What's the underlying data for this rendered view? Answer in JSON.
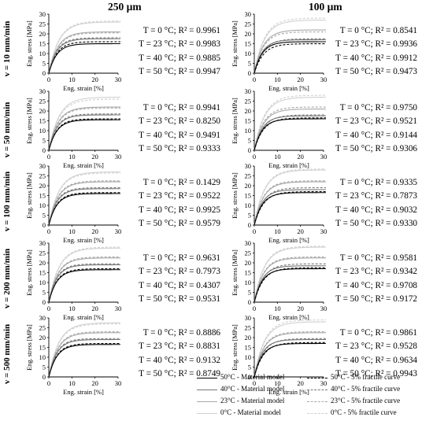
{
  "figure": {
    "column_headers": [
      "250 µm",
      "100 µm"
    ],
    "row_headers": [
      "v = 10 mm/min",
      "v = 50 mm/min",
      "v = 100 mm/min",
      "v = 200 mm/min",
      "v = 500 mm/min"
    ]
  },
  "legend": {
    "items": [
      {
        "label": "50°C - Material model",
        "color": "#000000",
        "style": "solid"
      },
      {
        "label": "40°C - Material model",
        "color": "#777777",
        "style": "solid"
      },
      {
        "label": "23°C - Material model",
        "color": "#a8a8a8",
        "style": "solid"
      },
      {
        "label": "0°C - Material model",
        "color": "#d0d0d0",
        "style": "solid"
      },
      {
        "label": "50°C - 5% fractile curve",
        "color": "#000000",
        "style": "dashed"
      },
      {
        "label": "40°C - 5% fractile curve",
        "color": "#777777",
        "style": "dashed"
      },
      {
        "label": "23°C - 5% fractile curve",
        "color": "#a8a8a8",
        "style": "dashed"
      },
      {
        "label": "0°C - 5% fractile curve",
        "color": "#d0d0d0",
        "style": "dashed"
      }
    ]
  },
  "chart_data": [
    {
      "type": "line",
      "panel": "v = 10 mm/min, 250 µm",
      "xlabel": "Eng. strain [%]",
      "ylabel": "Eng. stress [MPa]",
      "xlim": [
        0,
        30
      ],
      "ylim": [
        0,
        30
      ],
      "xticks": [
        "0",
        "10",
        "20",
        "30"
      ],
      "yticks": [
        "0",
        "5",
        "10",
        "15",
        "20",
        "25",
        "30"
      ],
      "series": [
        {
          "name": "50°C - Material model",
          "plateau": 15,
          "knee": 8
        },
        {
          "name": "40°C - Material model",
          "plateau": 17.5,
          "knee": 8
        },
        {
          "name": "23°C - Material model",
          "plateau": 21,
          "knee": 9
        },
        {
          "name": "0°C - Material model",
          "plateau": 26,
          "knee": 10
        },
        {
          "name": "50°C - 5% fractile curve",
          "plateau": 16,
          "knee": 8
        },
        {
          "name": "40°C - 5% fractile curve",
          "plateau": 18,
          "knee": 8
        },
        {
          "name": "23°C - 5% fractile curve",
          "plateau": 20.5,
          "knee": 9
        },
        {
          "name": "0°C - 5% fractile curve",
          "plateau": 26.5,
          "knee": 10
        }
      ],
      "r2": {
        "T = 0 °C": "0.9961",
        "T = 23 °C": "0.9983",
        "T = 40 °C": "0.9885",
        "T = 50 °C": "0.9947"
      }
    },
    {
      "type": "line",
      "panel": "v = 10 mm/min, 100 µm",
      "xlabel": "Eng. strain [%]",
      "ylabel": "Eng. stress [MPa]",
      "xlim": [
        0,
        30
      ],
      "ylim": [
        0,
        30
      ],
      "xticks": [
        "0",
        "10",
        "20",
        "30"
      ],
      "yticks": [
        "0",
        "5",
        "10",
        "15",
        "20",
        "25",
        "30"
      ],
      "series": [
        {
          "name": "50°C - Material model",
          "plateau": 16,
          "knee": 8
        },
        {
          "name": "40°C - Material model",
          "plateau": 17,
          "knee": 8
        },
        {
          "name": "23°C - Material model",
          "plateau": 22,
          "knee": 9
        },
        {
          "name": "0°C - Material model",
          "plateau": 27,
          "knee": 10
        },
        {
          "name": "50°C - 5% fractile curve",
          "plateau": 15,
          "knee": 9
        },
        {
          "name": "40°C - 5% fractile curve",
          "plateau": 17.5,
          "knee": 9
        },
        {
          "name": "23°C - 5% fractile curve",
          "plateau": 21,
          "knee": 9
        },
        {
          "name": "0°C - 5% fractile curve",
          "plateau": 28,
          "knee": 10
        }
      ],
      "r2": {
        "T = 0 °C": "0.8541",
        "T = 23 °C": "0.9936",
        "T = 40 °C": "0.9912",
        "T = 50 °C": "0.9473"
      }
    },
    {
      "type": "line",
      "panel": "v = 50 mm/min, 250 µm",
      "xlabel": "Eng. strain [%]",
      "ylabel": "Eng. stress [MPa]",
      "xlim": [
        0,
        30
      ],
      "ylim": [
        0,
        30
      ],
      "xticks": [
        "0",
        "10",
        "20",
        "30"
      ],
      "yticks": [
        "0",
        "5",
        "10",
        "15",
        "20",
        "25",
        "30"
      ],
      "series": [
        {
          "name": "50°C - Material model",
          "plateau": 15.5,
          "knee": 8
        },
        {
          "name": "40°C - Material model",
          "plateau": 18,
          "knee": 8
        },
        {
          "name": "23°C - Material model",
          "plateau": 22,
          "knee": 9
        },
        {
          "name": "0°C - Material model",
          "plateau": 27,
          "knee": 10
        },
        {
          "name": "50°C - 5% fractile curve",
          "plateau": 16,
          "knee": 8
        },
        {
          "name": "40°C - 5% fractile curve",
          "plateau": 18.5,
          "knee": 8
        },
        {
          "name": "23°C - 5% fractile curve",
          "plateau": 21.5,
          "knee": 9
        },
        {
          "name": "0°C - 5% fractile curve",
          "plateau": 26,
          "knee": 10
        }
      ],
      "r2": {
        "T = 0 °C": "0.9941",
        "T = 23 °C": "0.8250",
        "T = 40 °C": "0.9491",
        "T = 50 °C": "0.9333"
      }
    },
    {
      "type": "line",
      "panel": "v = 50 mm/min, 100 µm",
      "xlabel": "Eng. strain [%]",
      "ylabel": "Eng. stress [MPa]",
      "xlim": [
        0,
        30
      ],
      "ylim": [
        0,
        30
      ],
      "xticks": [
        "0",
        "10",
        "20",
        "30"
      ],
      "yticks": [
        "0",
        "5",
        "10",
        "15",
        "20",
        "25",
        "30"
      ],
      "series": [
        {
          "name": "50°C - Material model",
          "plateau": 16,
          "knee": 8
        },
        {
          "name": "40°C - Material model",
          "plateau": 17.5,
          "knee": 8
        },
        {
          "name": "23°C - Material model",
          "plateau": 21,
          "knee": 9
        },
        {
          "name": "0°C - Material model",
          "plateau": 27,
          "knee": 10
        },
        {
          "name": "50°C - 5% fractile curve",
          "plateau": 16.5,
          "knee": 9
        },
        {
          "name": "40°C - 5% fractile curve",
          "plateau": 18,
          "knee": 9
        },
        {
          "name": "23°C - 5% fractile curve",
          "plateau": 22,
          "knee": 9
        },
        {
          "name": "0°C - 5% fractile curve",
          "plateau": 28,
          "knee": 10
        }
      ],
      "r2": {
        "T = 0 °C": "0.9750",
        "T = 23 °C": "0.9521",
        "T = 40 °C": "0.9144",
        "T = 50 °C": "0.9306"
      }
    },
    {
      "type": "line",
      "panel": "v = 100 mm/min, 250 µm",
      "xlabel": "Eng. strain [%]",
      "ylabel": "Eng. stress [MPa]",
      "xlim": [
        0,
        30
      ],
      "ylim": [
        0,
        30
      ],
      "xticks": [
        "0",
        "10",
        "20",
        "30"
      ],
      "yticks": [
        "0",
        "5",
        "10",
        "15",
        "20",
        "25",
        "30"
      ],
      "series": [
        {
          "name": "50°C - Material model",
          "plateau": 16,
          "knee": 8
        },
        {
          "name": "40°C - Material model",
          "plateau": 18.5,
          "knee": 8
        },
        {
          "name": "23°C - Material model",
          "plateau": 22,
          "knee": 9
        },
        {
          "name": "0°C - Material model",
          "plateau": 27,
          "knee": 10
        },
        {
          "name": "50°C - 5% fractile curve",
          "plateau": 16.5,
          "knee": 8
        },
        {
          "name": "40°C - 5% fractile curve",
          "plateau": 19,
          "knee": 8
        },
        {
          "name": "23°C - 5% fractile curve",
          "plateau": 22.5,
          "knee": 9
        },
        {
          "name": "0°C - 5% fractile curve",
          "plateau": 26.5,
          "knee": 10
        }
      ],
      "r2": {
        "T = 0 °C": "0.1429",
        "T = 23 °C": "0.9522",
        "T = 40 °C": "0.9925",
        "T = 50 °C": "0.9579"
      }
    },
    {
      "type": "line",
      "panel": "v = 100 mm/min, 100 µm",
      "xlabel": "Eng. strain [%]",
      "ylabel": "Eng. stress [MPa]",
      "xlim": [
        0,
        30
      ],
      "ylim": [
        0,
        30
      ],
      "xticks": [
        "0",
        "10",
        "20",
        "30"
      ],
      "yticks": [
        "0",
        "5",
        "10",
        "15",
        "20",
        "25",
        "30"
      ],
      "series": [
        {
          "name": "50°C - Material model",
          "plateau": 16.5,
          "knee": 8
        },
        {
          "name": "40°C - Material model",
          "plateau": 18,
          "knee": 8
        },
        {
          "name": "23°C - Material model",
          "plateau": 22,
          "knee": 9
        },
        {
          "name": "0°C - Material model",
          "plateau": 28,
          "knee": 10
        },
        {
          "name": "50°C - 5% fractile curve",
          "plateau": 17,
          "knee": 9
        },
        {
          "name": "40°C - 5% fractile curve",
          "plateau": 19,
          "knee": 9
        },
        {
          "name": "23°C - 5% fractile curve",
          "plateau": 22.5,
          "knee": 9
        },
        {
          "name": "0°C - 5% fractile curve",
          "plateau": 28.5,
          "knee": 10
        }
      ],
      "r2": {
        "T = 0 °C": "0.9335",
        "T = 23 °C": "0.7873",
        "T = 40 °C": "0.9032",
        "T = 50 °C": "0.9330"
      }
    },
    {
      "type": "line",
      "panel": "v = 200 mm/min, 250 µm",
      "xlabel": "Eng. strain [%]",
      "ylabel": "Eng. stress [MPa]",
      "xlim": [
        0,
        30
      ],
      "ylim": [
        0,
        30
      ],
      "xticks": [
        "0",
        "10",
        "20",
        "30"
      ],
      "yticks": [
        "0",
        "5",
        "10",
        "15",
        "20",
        "25",
        "30"
      ],
      "series": [
        {
          "name": "50°C - Material model",
          "plateau": 16.5,
          "knee": 8
        },
        {
          "name": "40°C - Material model",
          "plateau": 19,
          "knee": 8
        },
        {
          "name": "23°C - Material model",
          "plateau": 22.5,
          "knee": 9
        },
        {
          "name": "0°C - Material model",
          "plateau": 27.5,
          "knee": 10
        },
        {
          "name": "50°C - 5% fractile curve",
          "plateau": 17,
          "knee": 8
        },
        {
          "name": "40°C - 5% fractile curve",
          "plateau": 19.5,
          "knee": 8
        },
        {
          "name": "23°C - 5% fractile curve",
          "plateau": 23,
          "knee": 9
        },
        {
          "name": "0°C - 5% fractile curve",
          "plateau": 28,
          "knee": 10
        }
      ],
      "r2": {
        "T = 0 °C": "0.9631",
        "T = 23 °C": "0.7973",
        "T = 40 °C": "0.4307",
        "T = 50 °C": "0.9531"
      }
    },
    {
      "type": "line",
      "panel": "v = 200 mm/min, 100 µm",
      "xlabel": "Eng. strain [%]",
      "ylabel": "Eng. stress [MPa]",
      "xlim": [
        0,
        30
      ],
      "ylim": [
        0,
        30
      ],
      "xticks": [
        "0",
        "10",
        "20",
        "30"
      ],
      "yticks": [
        "0",
        "5",
        "10",
        "15",
        "20",
        "25",
        "30"
      ],
      "series": [
        {
          "name": "50°C - Material model",
          "plateau": 17,
          "knee": 8
        },
        {
          "name": "40°C - Material model",
          "plateau": 18.5,
          "knee": 8
        },
        {
          "name": "23°C - Material model",
          "plateau": 22.5,
          "knee": 9
        },
        {
          "name": "0°C - Material model",
          "plateau": 28,
          "knee": 10
        },
        {
          "name": "50°C - 5% fractile curve",
          "plateau": 17.5,
          "knee": 9
        },
        {
          "name": "40°C - 5% fractile curve",
          "plateau": 19.5,
          "knee": 9
        },
        {
          "name": "23°C - 5% fractile curve",
          "plateau": 23,
          "knee": 9
        },
        {
          "name": "0°C - 5% fractile curve",
          "plateau": 28.5,
          "knee": 10
        }
      ],
      "r2": {
        "T = 0 °C": "0.9581",
        "T = 23 °C": "0.9342",
        "T = 40 °C": "0.9708",
        "T = 50 °C": "0.9172"
      }
    },
    {
      "type": "line",
      "panel": "v = 500 mm/min, 250 µm",
      "xlabel": "Eng. strain [%]",
      "ylabel": "Eng. stress [MPa]",
      "xlim": [
        0,
        30
      ],
      "ylim": [
        0,
        30
      ],
      "xticks": [
        "0",
        "10",
        "20",
        "30"
      ],
      "yticks": [
        "0",
        "5",
        "10",
        "15",
        "20",
        "25",
        "30"
      ],
      "series": [
        {
          "name": "50°C - Material model",
          "plateau": 16.5,
          "knee": 8
        },
        {
          "name": "40°C - Material model",
          "plateau": 19,
          "knee": 8
        },
        {
          "name": "23°C - Material model",
          "plateau": 22.5,
          "knee": 9
        },
        {
          "name": "0°C - Material model",
          "plateau": 27.5,
          "knee": 10
        },
        {
          "name": "50°C - 5% fractile curve",
          "plateau": 17,
          "knee": 8
        },
        {
          "name": "40°C - 5% fractile curve",
          "plateau": 19.5,
          "knee": 8
        },
        {
          "name": "23°C - 5% fractile curve",
          "plateau": 23,
          "knee": 9
        },
        {
          "name": "0°C - 5% fractile curve",
          "plateau": 27,
          "knee": 10
        }
      ],
      "r2": {
        "T = 0 °C": "0.8886",
        "T = 23 °C": "0.8831",
        "T = 40 °C": "0.9132",
        "T = 50 °C": "0.8749"
      }
    },
    {
      "type": "line",
      "panel": "v = 500 mm/min, 100 µm",
      "xlabel": "Eng. strain [%]",
      "ylabel": "Eng. stress [MPa]",
      "xlim": [
        0,
        30
      ],
      "ylim": [
        0,
        30
      ],
      "xticks": [
        "0",
        "10",
        "20",
        "30"
      ],
      "yticks": [
        "0",
        "5",
        "10",
        "15",
        "20",
        "25",
        "30"
      ],
      "series": [
        {
          "name": "50°C - Material model",
          "plateau": 17,
          "knee": 8
        },
        {
          "name": "40°C - Material model",
          "plateau": 19,
          "knee": 8
        },
        {
          "name": "23°C - Material model",
          "plateau": 22.5,
          "knee": 9
        },
        {
          "name": "0°C - Material model",
          "plateau": 28,
          "knee": 10
        },
        {
          "name": "50°C - 5% fractile curve",
          "plateau": 17.5,
          "knee": 9
        },
        {
          "name": "40°C - 5% fractile curve",
          "plateau": 19.5,
          "knee": 9
        },
        {
          "name": "23°C - 5% fractile curve",
          "plateau": 23,
          "knee": 9
        },
        {
          "name": "0°C - 5% fractile curve",
          "plateau": 29,
          "knee": 10
        }
      ],
      "r2": {
        "T = 0 °C": "0.9861",
        "T = 23 °C": "0.9528",
        "T = 40 °C": "0.9634",
        "T = 50 °C": "0.9943"
      }
    }
  ]
}
